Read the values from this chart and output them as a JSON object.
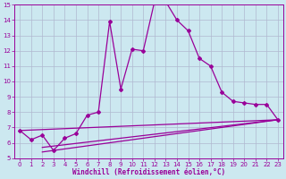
{
  "xlabel": "Windchill (Refroidissement éolien,°C)",
  "xlim": [
    -0.5,
    23.5
  ],
  "ylim": [
    5,
    15
  ],
  "yticks": [
    5,
    6,
    7,
    8,
    9,
    10,
    11,
    12,
    13,
    14,
    15
  ],
  "xticks": [
    0,
    1,
    2,
    3,
    4,
    5,
    6,
    7,
    8,
    9,
    10,
    11,
    12,
    13,
    14,
    15,
    16,
    17,
    18,
    19,
    20,
    21,
    22,
    23
  ],
  "background_color": "#cce8f0",
  "line_color": "#990099",
  "grid_color": "#b0b8d0",
  "main_curve_x": [
    0,
    1,
    2,
    3,
    4,
    5,
    6,
    7,
    8,
    9,
    10,
    11,
    12,
    13,
    14,
    15,
    16,
    17,
    18,
    19,
    20,
    21,
    22,
    23
  ],
  "main_curve_y": [
    6.8,
    6.2,
    6.5,
    5.5,
    6.3,
    6.6,
    7.8,
    8.0,
    13.9,
    9.5,
    12.1,
    12.0,
    15.2,
    15.2,
    14.0,
    13.3,
    11.5,
    11.0,
    9.3,
    8.7,
    8.6,
    8.5,
    8.5,
    7.5
  ],
  "line1_x": [
    0,
    23
  ],
  "line1_y": [
    6.8,
    7.5
  ],
  "line2_x": [
    2,
    23
  ],
  "line2_y": [
    5.4,
    7.5
  ],
  "line3_x": [
    2,
    23
  ],
  "line3_y": [
    5.7,
    7.5
  ]
}
